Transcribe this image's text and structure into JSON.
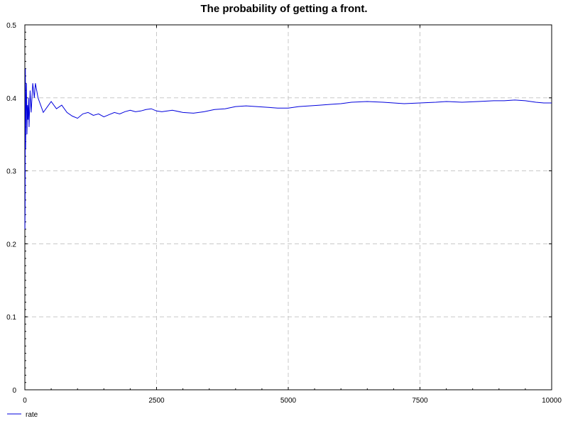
{
  "chart_data": {
    "type": "line",
    "title": "The probability of getting a front.",
    "xlabel": "",
    "ylabel": "",
    "xlim": [
      0,
      10000
    ],
    "ylim": [
      0,
      0.5
    ],
    "x_ticks": [
      "0",
      "2500",
      "5000",
      "7500",
      "10000"
    ],
    "y_ticks": [
      "0",
      "0.1",
      "0.2",
      "0.3",
      "0.4",
      "0.5"
    ],
    "grid": true,
    "legend_position": "bottom-left",
    "series": [
      {
        "name": "rate",
        "color": "#0000dd",
        "x": [
          1,
          5,
          10,
          15,
          20,
          30,
          40,
          50,
          60,
          70,
          80,
          100,
          120,
          150,
          180,
          200,
          250,
          300,
          350,
          400,
          450,
          500,
          600,
          700,
          800,
          900,
          1000,
          1100,
          1200,
          1300,
          1400,
          1500,
          1600,
          1700,
          1800,
          1900,
          2000,
          2100,
          2200,
          2300,
          2400,
          2500,
          2600,
          2800,
          3000,
          3200,
          3400,
          3600,
          3800,
          4000,
          4200,
          4400,
          4600,
          4800,
          5000,
          5200,
          5400,
          5600,
          5800,
          6000,
          6200,
          6500,
          6800,
          7000,
          7200,
          7500,
          7800,
          8000,
          8300,
          8600,
          8900,
          9100,
          9300,
          9500,
          9700,
          9850,
          10000
        ],
        "y": [
          0.22,
          0.25,
          0.44,
          0.33,
          0.38,
          0.42,
          0.35,
          0.39,
          0.37,
          0.4,
          0.36,
          0.41,
          0.38,
          0.42,
          0.4,
          0.42,
          0.4,
          0.39,
          0.38,
          0.385,
          0.39,
          0.395,
          0.385,
          0.39,
          0.38,
          0.375,
          0.372,
          0.378,
          0.38,
          0.376,
          0.378,
          0.374,
          0.377,
          0.38,
          0.378,
          0.381,
          0.383,
          0.381,
          0.382,
          0.384,
          0.385,
          0.382,
          0.381,
          0.383,
          0.38,
          0.379,
          0.381,
          0.384,
          0.385,
          0.388,
          0.389,
          0.388,
          0.387,
          0.386,
          0.386,
          0.388,
          0.389,
          0.39,
          0.391,
          0.392,
          0.394,
          0.395,
          0.394,
          0.393,
          0.392,
          0.393,
          0.394,
          0.395,
          0.394,
          0.395,
          0.396,
          0.396,
          0.397,
          0.396,
          0.394,
          0.393,
          0.393
        ]
      }
    ]
  }
}
